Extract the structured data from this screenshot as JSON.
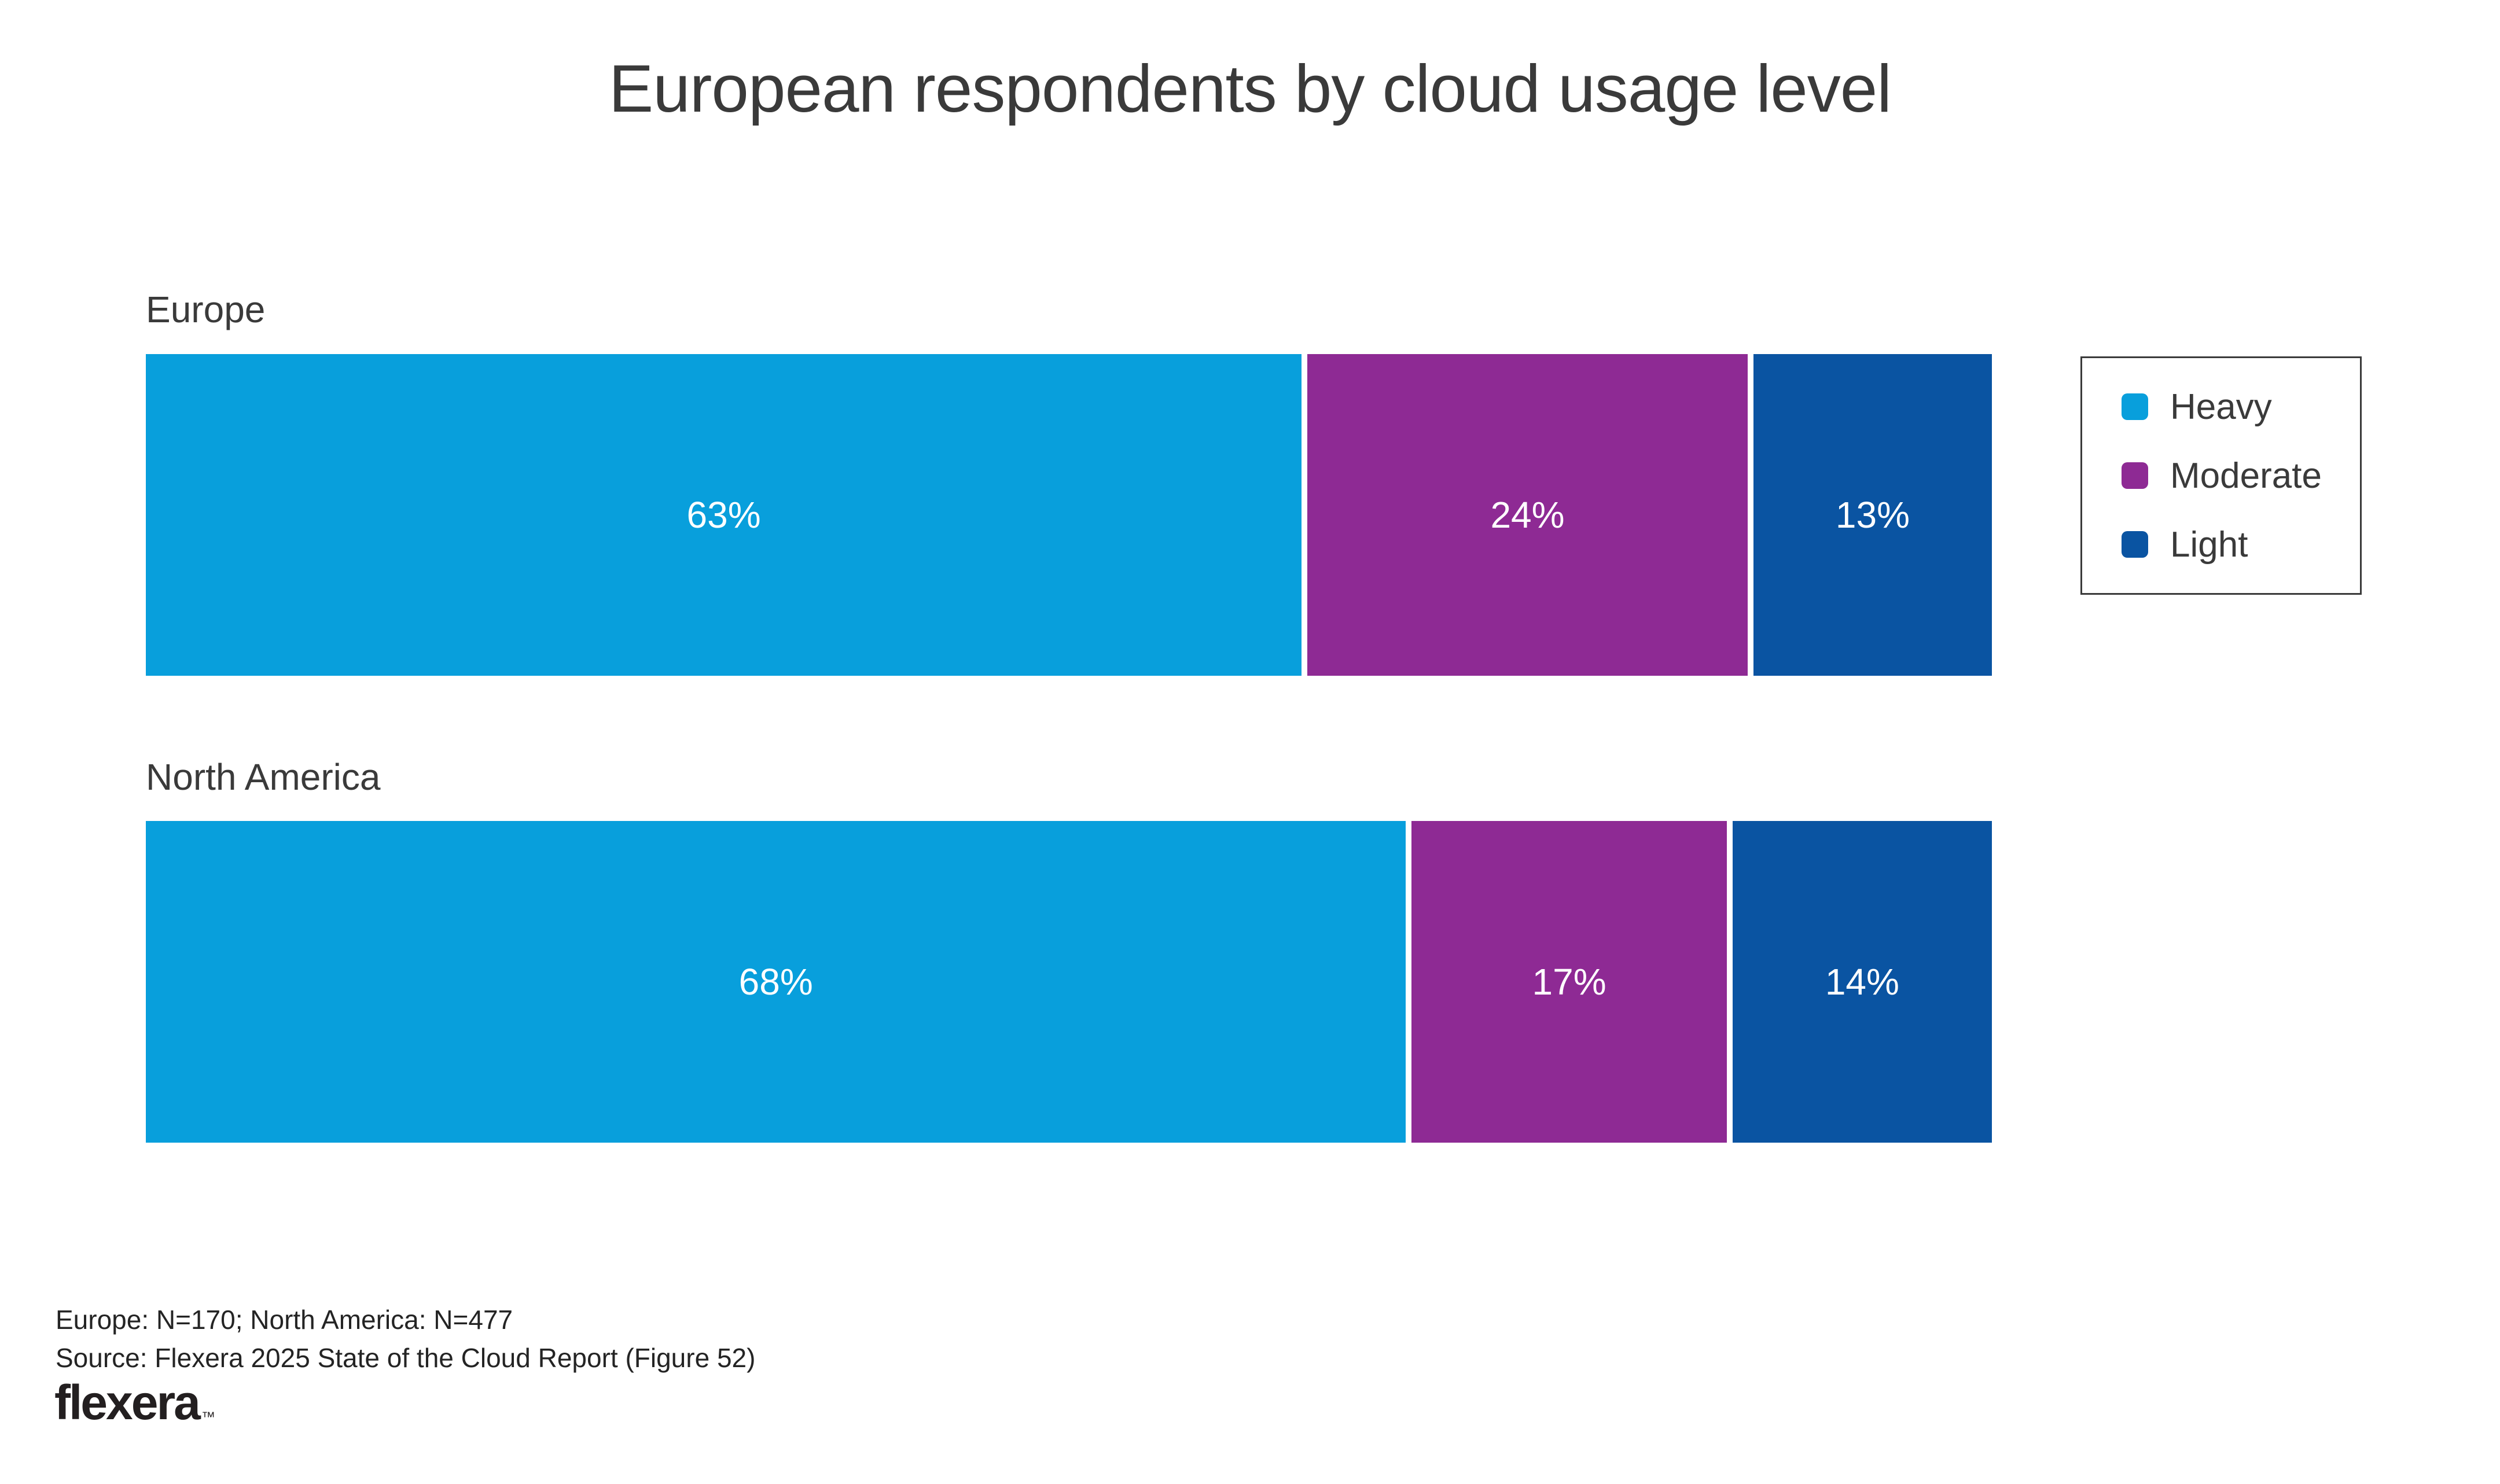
{
  "title": "European respondents by cloud usage level",
  "colors": {
    "heavy": "#089fdc",
    "moderate": "#8e2a94",
    "light": "#0a54a2",
    "text": "#3a3a3a",
    "background": "#ffffff"
  },
  "legend": {
    "items": [
      {
        "label": "Heavy",
        "color": "#089fdc"
      },
      {
        "label": "Moderate",
        "color": "#8e2a94"
      },
      {
        "label": "Light",
        "color": "#0a54a2"
      }
    ]
  },
  "chart_data": {
    "type": "bar",
    "orientation": "horizontal_stacked",
    "title": "European respondents by cloud usage level",
    "categories": [
      "Europe",
      "North America"
    ],
    "series": [
      {
        "name": "Heavy",
        "color": "#089fdc",
        "values": [
          63,
          68
        ]
      },
      {
        "name": "Moderate",
        "color": "#8e2a94",
        "values": [
          24,
          17
        ]
      },
      {
        "name": "Light",
        "color": "#0a54a2",
        "values": [
          13,
          14
        ]
      }
    ],
    "value_format": "percent",
    "xlim": [
      0,
      100
    ],
    "grid": false,
    "legend_position": "right",
    "rows": [
      {
        "label": "Europe",
        "segments": [
          {
            "pct": 63,
            "text": "63%",
            "color": "#089fdc"
          },
          {
            "pct": 24,
            "text": "24%",
            "color": "#8e2a94"
          },
          {
            "pct": 13,
            "text": "13%",
            "color": "#0a54a2"
          }
        ]
      },
      {
        "label": "North America",
        "segments": [
          {
            "pct": 68,
            "text": "68%",
            "color": "#089fdc"
          },
          {
            "pct": 17,
            "text": "17%",
            "color": "#8e2a94"
          },
          {
            "pct": 14,
            "text": "14%",
            "color": "#0a54a2"
          }
        ]
      }
    ]
  },
  "footer": {
    "note": "Europe: N=170; North America: N=477",
    "source": "Source: Flexera 2025 State of the Cloud Report (Figure 52)",
    "logo_text": "flexera",
    "logo_tm": "™"
  }
}
